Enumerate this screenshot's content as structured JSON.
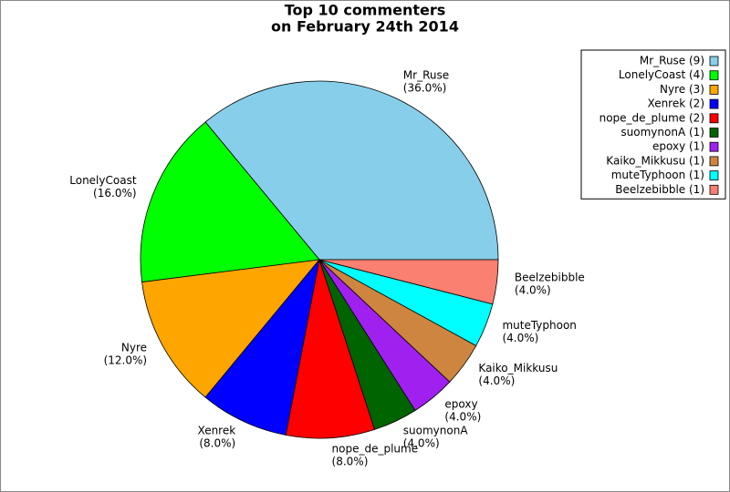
{
  "chart_data": {
    "type": "pie",
    "title": [
      "Top 10 commenters",
      "on February 24th 2014"
    ],
    "categories": [
      "Mr_Ruse",
      "LonelyCoast",
      "Nyre",
      "Xenrek",
      "nope_de_plume",
      "suomynonA",
      "epoxy",
      "Kaiko_Mikkusu",
      "muteTyphoon",
      "Beelzebibble"
    ],
    "values": [
      36,
      16,
      12,
      8,
      8,
      4,
      4,
      4,
      4,
      4
    ],
    "value_labels": [
      "(36.0%)",
      "(16.0%)",
      "(12.0%)",
      "(8.0%)",
      "(8.0%)",
      "(4.0%)",
      "(4.0%)",
      "(4.0%)",
      "(4.0%)",
      "(4.0%)"
    ],
    "legend_labels": [
      "Mr_Ruse (9)",
      "LonelyCoast (4)",
      "Nyre (3)",
      "Xenrek (2)",
      "nope_de_plume (2)",
      "suomynonA (1)",
      "epoxy (1)",
      "Kaiko_Mikkusu (1)",
      "muteTyphoon (1)",
      "Beelzebibble (1)"
    ],
    "colors": [
      "#87ceeb",
      "#00ff00",
      "#ffa500",
      "#0000ff",
      "#ff0000",
      "#006400",
      "#a020f0",
      "#cd853f",
      "#00ffff",
      "#fa8072"
    ],
    "legend": "upper right"
  }
}
